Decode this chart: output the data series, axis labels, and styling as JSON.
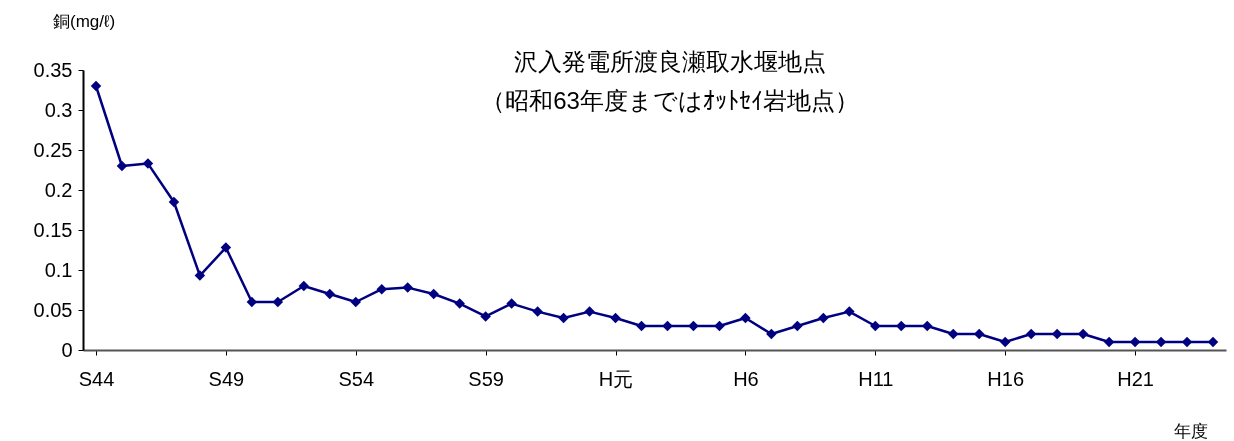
{
  "chart_data": {
    "type": "line",
    "title": "沢入発電所渡良瀬取水堰地点",
    "subtitle": "（昭和63年度まではｵｯﾄｾｲ岩地点）",
    "ylabel": "銅(mg/ℓ)",
    "xlabel": "年度",
    "categories": [
      "S44",
      null,
      null,
      null,
      null,
      "S49",
      null,
      null,
      null,
      null,
      "S54",
      null,
      null,
      null,
      null,
      "S59",
      null,
      null,
      null,
      null,
      "H元",
      null,
      null,
      null,
      null,
      "H6",
      null,
      null,
      null,
      null,
      "H11",
      null,
      null,
      null,
      null,
      "H16",
      null,
      null,
      null,
      null,
      "H21",
      null,
      null,
      null
    ],
    "series": [
      {
        "color": "#000080",
        "values": [
          0.33,
          0.23,
          0.233,
          0.185,
          0.093,
          0.128,
          0.06,
          0.06,
          0.08,
          0.07,
          0.06,
          0.076,
          0.078,
          0.07,
          0.058,
          0.042,
          0.058,
          0.048,
          0.04,
          0.048,
          0.04,
          0.03,
          0.03,
          0.03,
          0.03,
          0.04,
          0.02,
          0.03,
          0.04,
          0.048,
          0.03,
          0.03,
          0.03,
          0.02,
          0.02,
          0.01,
          0.02,
          0.02,
          0.02,
          0.01,
          0.01,
          0.01,
          0.01,
          0.01
        ]
      }
    ],
    "ylim": [
      0,
      0.35
    ],
    "yticks": [
      0,
      0.05,
      0.1,
      0.15,
      0.2,
      0.25,
      0.3,
      0.35
    ],
    "marker": "diamond",
    "line_style": "solid",
    "grid": false
  }
}
